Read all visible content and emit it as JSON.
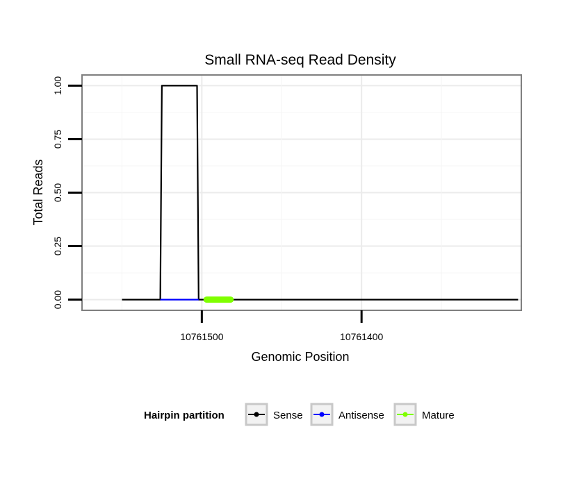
{
  "chart_data": {
    "type": "line",
    "title": "Small RNA-seq Read Density",
    "xlabel": "Genomic Position",
    "ylabel": "Total Reads",
    "x_reversed": true,
    "xlim": [
      10761575,
      10761300
    ],
    "ylim": [
      -0.05,
      1.05
    ],
    "x_ticks": [
      10761500,
      10761400
    ],
    "x_tick_labels": [
      "10761500",
      "10761400"
    ],
    "y_ticks": [
      0,
      0.25,
      0.5,
      0.75,
      1
    ],
    "y_tick_labels": [
      "0.00",
      "0.25",
      "0.50",
      "0.75",
      "1.00"
    ],
    "series": [
      {
        "name": "Sense",
        "color": "#000000",
        "x": [
          10761550,
          10761526,
          10761525,
          10761503,
          10761502,
          10761302
        ],
        "y": [
          0,
          0,
          1,
          1,
          0,
          0
        ]
      },
      {
        "name": "Antisense",
        "color": "#0000ff",
        "x": [
          10761526,
          10761502
        ],
        "y": [
          0,
          0
        ]
      },
      {
        "name": "Mature",
        "color": "#7fff00",
        "x": [
          10761497,
          10761482
        ],
        "y": [
          0,
          0
        ]
      }
    ],
    "legend": {
      "title": "Hairpin partition",
      "position": "bottom",
      "entries": [
        "Sense",
        "Antisense",
        "Mature"
      ]
    }
  }
}
